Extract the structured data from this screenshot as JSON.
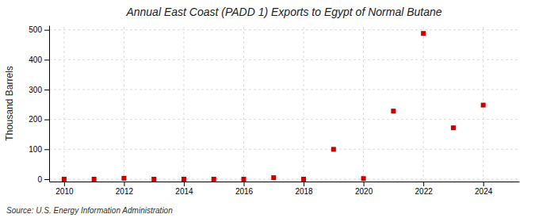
{
  "chart_data": {
    "type": "scatter",
    "title": "Annual East Coast (PADD 1) Exports to Egypt of Normal Butane",
    "ylabel": "Thousand Barrels",
    "annotation": "Source: U.S. Energy Information Administration",
    "x": [
      2010,
      2011,
      2012,
      2013,
      2014,
      2015,
      2016,
      2017,
      2018,
      2019,
      2020,
      2021,
      2022,
      2023,
      2024
    ],
    "values": [
      0,
      0,
      3,
      0,
      0,
      0,
      0,
      5,
      0,
      100,
      2,
      228,
      488,
      172,
      248
    ],
    "color": "#cc0000",
    "marker": "square",
    "xlim": [
      2009.5,
      2025.2
    ],
    "ylim": [
      -8,
      515
    ],
    "xticks": [
      2010,
      2012,
      2014,
      2016,
      2018,
      2020,
      2022,
      2024
    ],
    "yticks": [
      0,
      100,
      200,
      300,
      400,
      500
    ],
    "grid": true
  }
}
